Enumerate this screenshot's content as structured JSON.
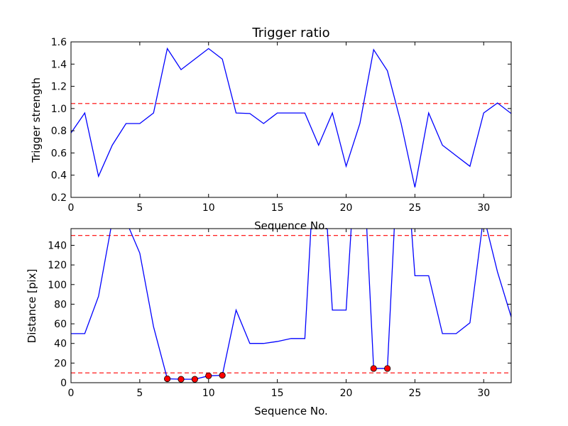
{
  "chart_data": [
    {
      "type": "line",
      "title": "Trigger ratio",
      "xlabel": "Sequence No.",
      "ylabel": "Trigger strength",
      "xlim": [
        0,
        32
      ],
      "ylim": [
        0.2,
        1.6
      ],
      "xticks": [
        "0",
        "5",
        "10",
        "15",
        "20",
        "25",
        "30"
      ],
      "yticks": [
        "0.2",
        "0.4",
        "0.6",
        "0.8",
        "1.0",
        "1.2",
        "1.4",
        "1.6"
      ],
      "line_color": "#0000ff",
      "threshold_color": "#ff0000",
      "thresholds": [
        1.045
      ],
      "series": [
        {
          "x": [
            0,
            1,
            2,
            3,
            4,
            5,
            6,
            7,
            8,
            9,
            10,
            11,
            12,
            13,
            14,
            15,
            16,
            17,
            18,
            19,
            20,
            21,
            22,
            23,
            24,
            25,
            26,
            27,
            28,
            29,
            30,
            31,
            32
          ],
          "values": [
            0.78,
            0.96,
            0.39,
            0.67,
            0.865,
            0.865,
            0.96,
            1.54,
            1.35,
            1.445,
            1.54,
            1.445,
            0.96,
            0.955,
            0.865,
            0.96,
            0.96,
            0.96,
            0.67,
            0.96,
            0.48,
            0.865,
            1.53,
            1.34,
            0.865,
            0.29,
            0.96,
            0.67,
            0.575,
            0.48,
            0.96,
            1.05,
            0.955
          ]
        }
      ]
    },
    {
      "type": "line",
      "xlabel": "Sequence No.",
      "ylabel": "Distance [pix]",
      "xlim": [
        0,
        32
      ],
      "ylim": [
        0,
        157
      ],
      "xticks": [
        "0",
        "5",
        "10",
        "15",
        "20",
        "25",
        "30"
      ],
      "yticks": [
        "0",
        "20",
        "40",
        "60",
        "80",
        "100",
        "120",
        "140"
      ],
      "line_color": "#0000ff",
      "threshold_color": "#ff0000",
      "marker_color": "#ff0000",
      "thresholds": [
        10,
        150
      ],
      "series": [
        {
          "x": [
            0,
            1,
            2,
            3,
            4,
            5,
            6,
            7,
            8,
            9,
            10,
            11,
            12,
            13,
            14,
            15,
            16,
            17,
            18,
            19,
            20,
            21,
            22,
            23,
            24,
            25,
            26,
            27,
            28,
            29,
            30,
            31,
            32
          ],
          "values": [
            50,
            50,
            88,
            165,
            165,
            132,
            57,
            4,
            3.5,
            3.5,
            7,
            7.5,
            74,
            40,
            40,
            42,
            45,
            45,
            300,
            74,
            74,
            300,
            14.5,
            14.5,
            300,
            109,
            109,
            50,
            50,
            61,
            170,
            113,
            67
          ]
        }
      ],
      "highlighted_points": [
        {
          "x": 7,
          "y": 4
        },
        {
          "x": 8,
          "y": 3.5
        },
        {
          "x": 9,
          "y": 3.5
        },
        {
          "x": 10,
          "y": 7
        },
        {
          "x": 11,
          "y": 7.5
        },
        {
          "x": 22,
          "y": 14.5
        },
        {
          "x": 23,
          "y": 14.5
        }
      ]
    }
  ]
}
